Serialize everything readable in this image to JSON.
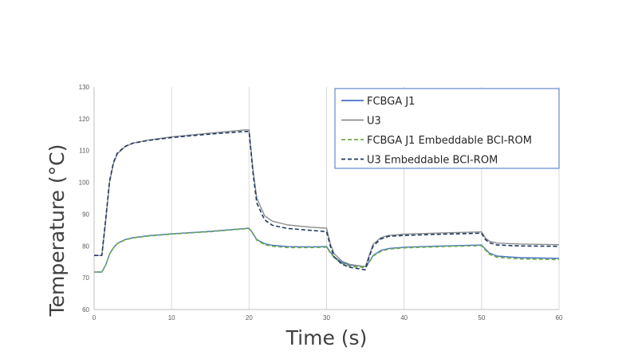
{
  "chart_data": {
    "type": "line",
    "title": "",
    "xlabel": "Time (s)",
    "ylabel": "Temperature (°C)",
    "xlim": [
      0,
      60
    ],
    "ylim": [
      60,
      130
    ],
    "xticks": [
      "0",
      "10",
      "20",
      "30",
      "40",
      "50",
      "60"
    ],
    "yticks": [
      "60",
      "70",
      "80",
      "90",
      "100",
      "110",
      "120",
      "130"
    ],
    "grid": "vertical",
    "legend_position": "top-right",
    "series": [
      {
        "name": "FCBGA J1",
        "color": "#4472c4",
        "dash": "solid",
        "x": [
          0,
          1,
          1.5,
          2,
          2.5,
          3,
          4,
          5,
          7,
          10,
          15,
          19.5,
          20,
          20.5,
          21,
          22,
          23,
          25,
          28,
          30,
          30.5,
          31,
          32,
          33,
          35,
          35.5,
          36,
          37,
          38,
          40,
          45,
          50,
          50.5,
          51,
          52,
          55,
          60
        ],
        "y": [
          71.8,
          71.8,
          74,
          77.5,
          79.5,
          80.8,
          82,
          82.6,
          83.2,
          83.8,
          84.6,
          85.5,
          85.6,
          84,
          82,
          80.7,
          80.2,
          79.8,
          79.7,
          79.8,
          78,
          76.5,
          74.8,
          74,
          73.5,
          75,
          77,
          78.6,
          79.2,
          79.6,
          80,
          80.3,
          79,
          77.8,
          76.8,
          76.3,
          76.1
        ]
      },
      {
        "name": "U3",
        "color": "#8c8c8c",
        "dash": "solid",
        "x": [
          0,
          1,
          1.5,
          2,
          2.5,
          3,
          4,
          5,
          7,
          10,
          15,
          19.5,
          20,
          20.5,
          21,
          22,
          23,
          25,
          28,
          30,
          30.5,
          31,
          32,
          33,
          35,
          35.5,
          36,
          37,
          38,
          40,
          45,
          50,
          50.5,
          51,
          52,
          55,
          60
        ],
        "y": [
          77,
          77,
          88,
          100,
          106,
          109,
          111.2,
          112.3,
          113.3,
          114.3,
          115.5,
          116.5,
          116.5,
          104,
          95,
          89.5,
          87.8,
          86.6,
          85.9,
          85.6,
          80.5,
          77.5,
          75.2,
          74.2,
          73.5,
          77,
          80.5,
          82.6,
          83.3,
          83.7,
          84.1,
          84.4,
          82.5,
          81.5,
          80.9,
          80.6,
          80.4
        ]
      },
      {
        "name": "FCBGA J1 Embeddable BCI-ROM",
        "color": "#70ad47",
        "dash": "dashed",
        "x": [
          0,
          1,
          1.5,
          2,
          2.5,
          3,
          4,
          5,
          7,
          10,
          15,
          19.5,
          20,
          20.5,
          21,
          22,
          23,
          25,
          28,
          30,
          30.5,
          31,
          32,
          33,
          35,
          35.5,
          36,
          37,
          38,
          40,
          45,
          50,
          50.5,
          51,
          52,
          55,
          60
        ],
        "y": [
          71.8,
          71.8,
          74,
          77.4,
          79.4,
          80.7,
          81.9,
          82.5,
          83.1,
          83.7,
          84.5,
          85.4,
          85.5,
          83.8,
          81.8,
          80.4,
          79.9,
          79.5,
          79.5,
          79.6,
          77.8,
          76.2,
          74.5,
          73.6,
          73.2,
          74.8,
          76.8,
          78.3,
          79,
          79.4,
          79.8,
          80.1,
          78.7,
          77.4,
          76.4,
          75.9,
          75.7
        ]
      },
      {
        "name": "U3 Embeddable BCI-ROM",
        "color": "#1f3864",
        "dash": "dashed",
        "x": [
          0,
          1,
          1.5,
          2,
          2.5,
          3,
          4,
          5,
          7,
          10,
          15,
          19.5,
          20,
          20.5,
          21,
          22,
          23,
          25,
          28,
          30,
          30.5,
          31,
          32,
          33,
          35,
          35.5,
          36,
          37,
          38,
          40,
          45,
          50,
          50.5,
          51,
          52,
          55,
          60
        ],
        "y": [
          77,
          77,
          88.5,
          100.5,
          106.3,
          109.2,
          111.3,
          112.3,
          113.2,
          114.1,
          115.2,
          116,
          116,
          103,
          93.5,
          88.2,
          86.5,
          85.5,
          84.9,
          84.5,
          79.8,
          76.5,
          74.2,
          73.3,
          72.5,
          76.5,
          80,
          82.2,
          83,
          83.3,
          83.7,
          84,
          82,
          81,
          80.3,
          80,
          79.9
        ]
      }
    ]
  }
}
